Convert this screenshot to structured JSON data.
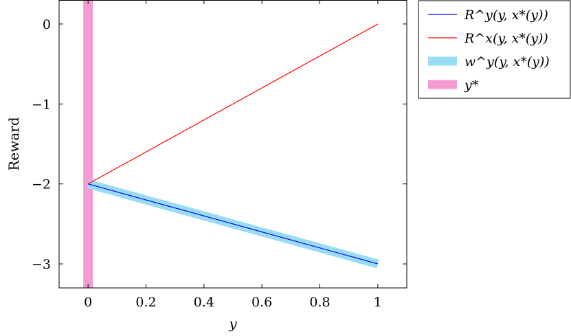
{
  "chart_data": {
    "type": "line",
    "xlabel": "y",
    "ylabel": "Reward",
    "xlim": [
      -0.1,
      1.1
    ],
    "ylim": [
      -3.3,
      0.3
    ],
    "x_ticks": [
      0,
      0.2,
      0.4,
      0.6,
      0.8,
      1
    ],
    "x_tick_labels": [
      "0",
      "0.2",
      "0.4",
      "0.6",
      "0.8",
      "1"
    ],
    "y_ticks": [
      0,
      -1,
      -2,
      -3
    ],
    "y_tick_labels": [
      "0",
      "−1",
      "−2",
      "−3"
    ],
    "grid": false,
    "legend_position": "outside-top-right",
    "series": [
      {
        "name": "R^y(y, x*(y))",
        "style": "line",
        "color": "#0000ff",
        "x": [
          0,
          1
        ],
        "y": [
          -2,
          -3
        ]
      },
      {
        "name": "R^x(y, x*(y))",
        "style": "line",
        "color": "#ff0000",
        "x": [
          0,
          1
        ],
        "y": [
          -2,
          0
        ]
      },
      {
        "name": "w^y(y, x*(y))",
        "style": "thick-band",
        "color": "#99dcf5",
        "x": [
          0,
          1
        ],
        "y": [
          -2,
          -3
        ]
      },
      {
        "name": "y*",
        "style": "vertical-band",
        "color": "#f39bd2",
        "x": [
          0,
          0
        ],
        "y": [
          -3.3,
          0.3
        ]
      }
    ]
  }
}
